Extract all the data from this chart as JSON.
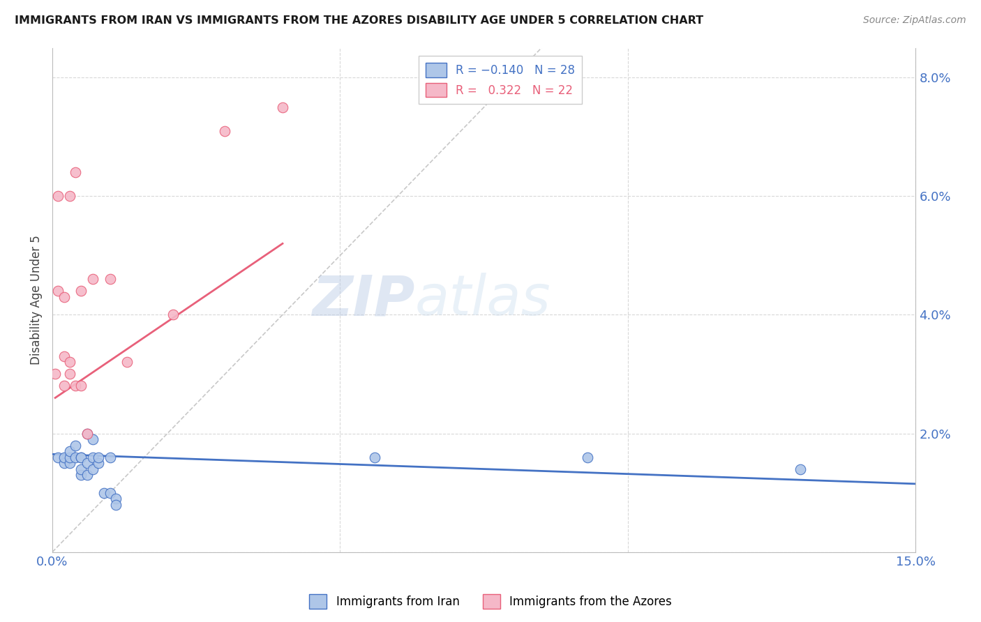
{
  "title": "IMMIGRANTS FROM IRAN VS IMMIGRANTS FROM THE AZORES DISABILITY AGE UNDER 5 CORRELATION CHART",
  "source": "Source: ZipAtlas.com",
  "ylabel": "Disability Age Under 5",
  "xmin": 0.0,
  "xmax": 0.15,
  "ymin": 0.0,
  "ymax": 0.085,
  "y_ticks_right": [
    0.0,
    0.02,
    0.04,
    0.06,
    0.08
  ],
  "y_tick_labels_right": [
    "",
    "2.0%",
    "4.0%",
    "6.0%",
    "8.0%"
  ],
  "iran_color": "#aec6e8",
  "azores_color": "#f5b8c8",
  "iran_line_color": "#4472c4",
  "azores_line_color": "#e8607a",
  "diagonal_color": "#c8c8c8",
  "background_color": "#ffffff",
  "iran_x": [
    0.001,
    0.002,
    0.002,
    0.003,
    0.003,
    0.003,
    0.004,
    0.004,
    0.005,
    0.005,
    0.005,
    0.005,
    0.006,
    0.006,
    0.006,
    0.007,
    0.007,
    0.007,
    0.008,
    0.008,
    0.009,
    0.01,
    0.01,
    0.011,
    0.011,
    0.056,
    0.093,
    0.13
  ],
  "iran_y": [
    0.016,
    0.015,
    0.016,
    0.015,
    0.016,
    0.017,
    0.018,
    0.016,
    0.016,
    0.013,
    0.014,
    0.016,
    0.013,
    0.015,
    0.02,
    0.014,
    0.016,
    0.019,
    0.015,
    0.016,
    0.01,
    0.01,
    0.016,
    0.009,
    0.008,
    0.016,
    0.016,
    0.014
  ],
  "azores_x": [
    0.0005,
    0.001,
    0.001,
    0.002,
    0.002,
    0.002,
    0.003,
    0.003,
    0.003,
    0.004,
    0.004,
    0.005,
    0.005,
    0.006,
    0.007,
    0.01,
    0.013,
    0.021,
    0.03,
    0.04
  ],
  "azores_y": [
    0.03,
    0.044,
    0.06,
    0.028,
    0.033,
    0.043,
    0.03,
    0.032,
    0.06,
    0.028,
    0.064,
    0.028,
    0.044,
    0.02,
    0.046,
    0.046,
    0.032,
    0.04,
    0.071,
    0.075
  ],
  "iran_trend_x": [
    0.0,
    0.15
  ],
  "iran_trend_y": [
    0.0165,
    0.0115
  ],
  "azores_trend_x": [
    0.0005,
    0.04
  ],
  "azores_trend_y": [
    0.026,
    0.052
  ]
}
